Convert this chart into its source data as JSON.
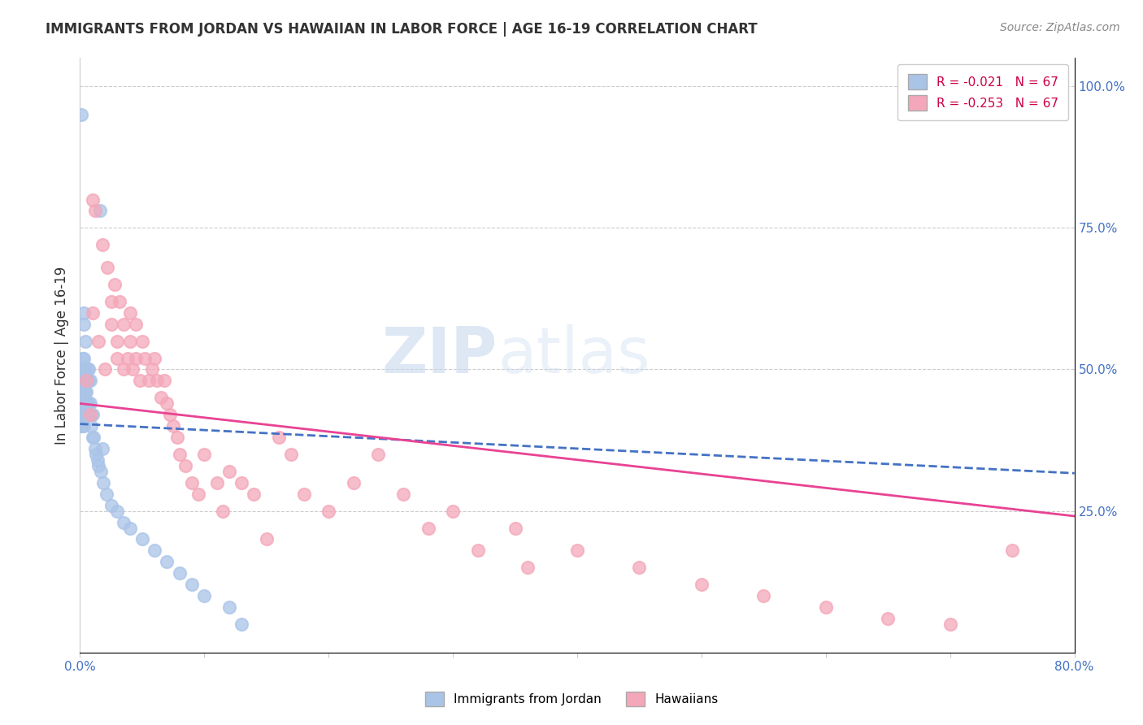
{
  "title": "IMMIGRANTS FROM JORDAN VS HAWAIIAN IN LABOR FORCE | AGE 16-19 CORRELATION CHART",
  "source": "Source: ZipAtlas.com",
  "ylabel": "In Labor Force | Age 16-19",
  "right_yticks": [
    "100.0%",
    "75.0%",
    "50.0%",
    "25.0%"
  ],
  "right_ytick_vals": [
    1.0,
    0.75,
    0.5,
    0.25
  ],
  "legend_label1": "Immigrants from Jordan",
  "legend_label2": "Hawaiians",
  "color_jordan": "#aac4e8",
  "color_hawaiian": "#f4a7b9",
  "color_jordan_line": "#4472C4",
  "color_hawaiian_line": "#E84393",
  "watermark_zip": "ZIP",
  "watermark_atlas": "atlas",
  "jordan_x": [
    0.001,
    0.001,
    0.001,
    0.001,
    0.001,
    0.001,
    0.002,
    0.002,
    0.002,
    0.002,
    0.002,
    0.002,
    0.002,
    0.003,
    0.003,
    0.003,
    0.003,
    0.003,
    0.003,
    0.003,
    0.003,
    0.003,
    0.004,
    0.004,
    0.004,
    0.004,
    0.004,
    0.004,
    0.005,
    0.005,
    0.005,
    0.005,
    0.006,
    0.006,
    0.006,
    0.006,
    0.007,
    0.007,
    0.007,
    0.008,
    0.008,
    0.009,
    0.009,
    0.01,
    0.01,
    0.011,
    0.012,
    0.013,
    0.014,
    0.015,
    0.017,
    0.019,
    0.021,
    0.025,
    0.03,
    0.035,
    0.04,
    0.05,
    0.06,
    0.07,
    0.08,
    0.09,
    0.1,
    0.12,
    0.13,
    0.016,
    0.018
  ],
  "jordan_y": [
    0.95,
    0.45,
    0.43,
    0.42,
    0.41,
    0.4,
    0.52,
    0.5,
    0.48,
    0.46,
    0.44,
    0.42,
    0.4,
    0.6,
    0.58,
    0.52,
    0.5,
    0.48,
    0.46,
    0.44,
    0.42,
    0.4,
    0.55,
    0.5,
    0.48,
    0.46,
    0.44,
    0.42,
    0.48,
    0.46,
    0.44,
    0.42,
    0.5,
    0.48,
    0.44,
    0.42,
    0.5,
    0.48,
    0.44,
    0.48,
    0.44,
    0.42,
    0.4,
    0.42,
    0.38,
    0.38,
    0.36,
    0.35,
    0.34,
    0.33,
    0.32,
    0.3,
    0.28,
    0.26,
    0.25,
    0.23,
    0.22,
    0.2,
    0.18,
    0.16,
    0.14,
    0.12,
    0.1,
    0.08,
    0.05,
    0.78,
    0.36
  ],
  "hawaiian_x": [
    0.01,
    0.01,
    0.012,
    0.015,
    0.018,
    0.02,
    0.022,
    0.025,
    0.025,
    0.028,
    0.03,
    0.03,
    0.032,
    0.035,
    0.035,
    0.038,
    0.04,
    0.04,
    0.042,
    0.045,
    0.045,
    0.048,
    0.05,
    0.052,
    0.055,
    0.058,
    0.06,
    0.062,
    0.065,
    0.068,
    0.07,
    0.072,
    0.075,
    0.078,
    0.08,
    0.085,
    0.09,
    0.095,
    0.1,
    0.11,
    0.115,
    0.12,
    0.13,
    0.14,
    0.15,
    0.16,
    0.17,
    0.18,
    0.2,
    0.22,
    0.24,
    0.26,
    0.3,
    0.35,
    0.4,
    0.45,
    0.5,
    0.55,
    0.6,
    0.65,
    0.7,
    0.75,
    0.28,
    0.32,
    0.36,
    0.005,
    0.008
  ],
  "hawaiian_y": [
    0.8,
    0.6,
    0.78,
    0.55,
    0.72,
    0.5,
    0.68,
    0.62,
    0.58,
    0.65,
    0.55,
    0.52,
    0.62,
    0.58,
    0.5,
    0.52,
    0.6,
    0.55,
    0.5,
    0.58,
    0.52,
    0.48,
    0.55,
    0.52,
    0.48,
    0.5,
    0.52,
    0.48,
    0.45,
    0.48,
    0.44,
    0.42,
    0.4,
    0.38,
    0.35,
    0.33,
    0.3,
    0.28,
    0.35,
    0.3,
    0.25,
    0.32,
    0.3,
    0.28,
    0.2,
    0.38,
    0.35,
    0.28,
    0.25,
    0.3,
    0.35,
    0.28,
    0.25,
    0.22,
    0.18,
    0.15,
    0.12,
    0.1,
    0.08,
    0.06,
    0.05,
    0.18,
    0.22,
    0.18,
    0.15,
    0.48,
    0.42
  ],
  "xlim": [
    0.0,
    0.8
  ],
  "ylim": [
    0.0,
    1.05
  ],
  "jordan_R": -0.021,
  "hawaiian_R": -0.253,
  "grid_color": "#cccccc",
  "tick_color": "#4472C4",
  "legend_r1_text": "R = -0.021   N = 67",
  "legend_r2_text": "R = -0.253   N = 67",
  "legend_r_color": "#CC0044",
  "legend_n_color": "#333333"
}
